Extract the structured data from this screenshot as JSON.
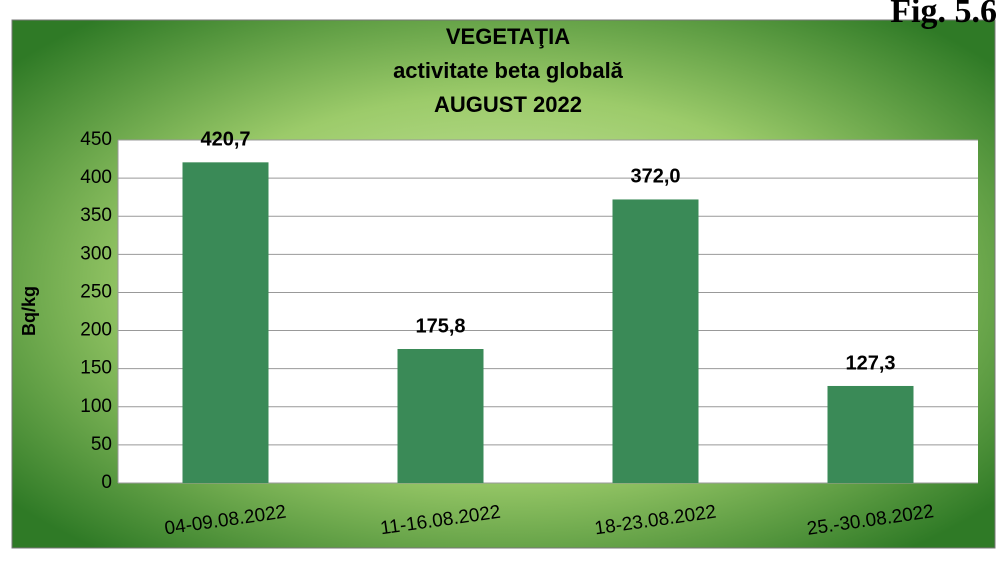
{
  "figure_label": "Fig. 5.6",
  "chart_data": {
    "type": "bar",
    "title": [
      "VEGETAŢIA",
      "activitate beta globală",
      "AUGUST 2022"
    ],
    "y_label": "Bq/kg",
    "categories": [
      "04-09.08.2022",
      "11-16.08.2022",
      "18-23.08.2022",
      "25.-30.08.2022"
    ],
    "values": [
      420.7,
      175.8,
      372.0,
      127.3
    ],
    "value_labels": [
      "420,7",
      "175,8",
      "372,0",
      "127,3"
    ],
    "color": "#3a8a57",
    "ylim": [
      0,
      450
    ],
    "yticks": [
      0,
      50,
      100,
      150,
      200,
      250,
      300,
      350,
      400,
      450
    ],
    "grid": true
  }
}
